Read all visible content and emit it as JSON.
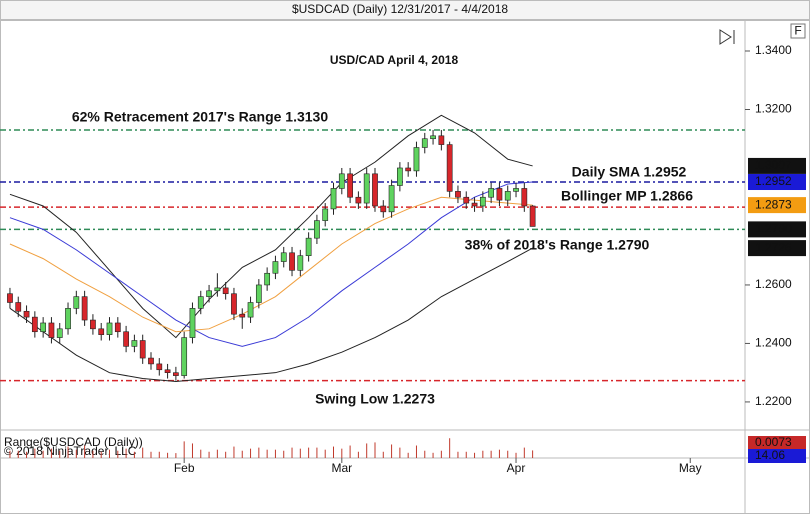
{
  "chart_data": {
    "type": "candlestick",
    "header": "$USDCAD (Daily)  12/31/2017 - 4/4/2018",
    "title": "USD/CAD April 4, 2018",
    "button": "F",
    "copyright": "© 2018 NinjaTrader, LLC",
    "up_color": "#5fd35f",
    "down_color": "#d7262b",
    "x": [
      0,
      1,
      2,
      3,
      4,
      5,
      6,
      7,
      8,
      9,
      10,
      11,
      12,
      13,
      14,
      15,
      16,
      17,
      18,
      19,
      20,
      21,
      22,
      23,
      24,
      25,
      26,
      27,
      28,
      29,
      30,
      31,
      32,
      33,
      34,
      35,
      36,
      37,
      38,
      39,
      40,
      41,
      42,
      43,
      44,
      45,
      46,
      47,
      48,
      49,
      50,
      51,
      52,
      53,
      54,
      55,
      56,
      57,
      58,
      59,
      60,
      61,
      62,
      63
    ],
    "open": [
      1.257,
      1.254,
      1.251,
      1.249,
      1.244,
      1.247,
      1.242,
      1.245,
      1.252,
      1.256,
      1.248,
      1.245,
      1.243,
      1.247,
      1.244,
      1.239,
      1.241,
      1.235,
      1.233,
      1.231,
      1.23,
      1.229,
      1.242,
      1.252,
      1.256,
      1.258,
      1.259,
      1.257,
      1.25,
      1.249,
      1.254,
      1.26,
      1.264,
      1.268,
      1.271,
      1.265,
      1.27,
      1.276,
      1.282,
      1.286,
      1.293,
      1.298,
      1.29,
      1.288,
      1.298,
      1.287,
      1.285,
      1.294,
      1.3,
      1.299,
      1.307,
      1.31,
      1.311,
      1.308,
      1.292,
      1.29,
      1.288,
      1.287,
      1.29,
      1.293,
      1.289,
      1.292,
      1.293,
      1.287
    ],
    "high": [
      1.259,
      1.256,
      1.253,
      1.251,
      1.249,
      1.249,
      1.247,
      1.254,
      1.258,
      1.258,
      1.25,
      1.247,
      1.249,
      1.249,
      1.246,
      1.243,
      1.243,
      1.237,
      1.235,
      1.233,
      1.232,
      1.244,
      1.254,
      1.258,
      1.26,
      1.264,
      1.261,
      1.259,
      1.252,
      1.256,
      1.262,
      1.266,
      1.27,
      1.273,
      1.273,
      1.272,
      1.278,
      1.284,
      1.288,
      1.295,
      1.3,
      1.3,
      1.292,
      1.3,
      1.3,
      1.289,
      1.296,
      1.302,
      1.302,
      1.309,
      1.312,
      1.313,
      1.313,
      1.309,
      1.294,
      1.292,
      1.29,
      1.292,
      1.295,
      1.295,
      1.294,
      1.295,
      1.295,
      1.2873
    ],
    "low": [
      1.252,
      1.249,
      1.247,
      1.242,
      1.242,
      1.24,
      1.24,
      1.243,
      1.25,
      1.246,
      1.243,
      1.241,
      1.241,
      1.242,
      1.237,
      1.237,
      1.233,
      1.231,
      1.229,
      1.228,
      1.2273,
      1.228,
      1.24,
      1.25,
      1.254,
      1.256,
      1.255,
      1.248,
      1.245,
      1.247,
      1.252,
      1.258,
      1.262,
      1.266,
      1.263,
      1.263,
      1.268,
      1.274,
      1.28,
      1.284,
      1.291,
      1.288,
      1.286,
      1.286,
      1.285,
      1.283,
      1.283,
      1.292,
      1.297,
      1.297,
      1.305,
      1.308,
      1.306,
      1.29,
      1.288,
      1.286,
      1.285,
      1.285,
      1.288,
      1.287,
      1.287,
      1.29,
      1.285,
      1.28
    ],
    "close": [
      1.254,
      1.251,
      1.249,
      1.244,
      1.247,
      1.242,
      1.245,
      1.252,
      1.256,
      1.248,
      1.245,
      1.243,
      1.247,
      1.244,
      1.239,
      1.241,
      1.235,
      1.233,
      1.231,
      1.23,
      1.229,
      1.242,
      1.252,
      1.256,
      1.258,
      1.259,
      1.257,
      1.25,
      1.249,
      1.254,
      1.26,
      1.264,
      1.268,
      1.271,
      1.265,
      1.27,
      1.276,
      1.282,
      1.286,
      1.293,
      1.298,
      1.29,
      1.288,
      1.298,
      1.287,
      1.285,
      1.294,
      1.3,
      1.299,
      1.307,
      1.31,
      1.311,
      1.308,
      1.292,
      1.29,
      1.288,
      1.287,
      1.29,
      1.293,
      1.289,
      1.292,
      1.293,
      1.287,
      1.28
    ],
    "xlim": [
      -1.2,
      88.6
    ],
    "xticks": [
      {
        "value": 21,
        "label": "Feb"
      },
      {
        "value": 40,
        "label": "Mar"
      },
      {
        "value": 61,
        "label": "Apr"
      },
      {
        "value": 82,
        "label": "May"
      }
    ],
    "ylim": [
      1.2104,
      1.3506
    ],
    "yticks": [
      {
        "value": 1.34,
        "label": "1.3400"
      },
      {
        "value": 1.32,
        "label": "1.3200"
      },
      {
        "value": 1.26,
        "label": "1.2600"
      },
      {
        "value": 1.24,
        "label": "1.2400"
      },
      {
        "value": 1.22,
        "label": "1.2200"
      }
    ],
    "overlays": [
      {
        "color": "#222222",
        "x": [
          0,
          4,
          8,
          12,
          16,
          20,
          24,
          28,
          32,
          36,
          40,
          44,
          48,
          52,
          56,
          60,
          63
        ],
        "values": [
          1.291,
          1.287,
          1.278,
          1.265,
          1.252,
          1.242,
          1.255,
          1.266,
          1.272,
          1.283,
          1.295,
          1.302,
          1.311,
          1.318,
          1.312,
          1.303,
          1.3007
        ]
      },
      {
        "color": "#222222",
        "x": [
          0,
          4,
          8,
          12,
          16,
          20,
          24,
          28,
          32,
          36,
          40,
          44,
          48,
          52,
          56,
          60,
          63
        ],
        "values": [
          1.252,
          1.244,
          1.236,
          1.23,
          1.228,
          1.227,
          1.228,
          1.229,
          1.23,
          1.233,
          1.237,
          1.242,
          1.248,
          1.256,
          1.262,
          1.268,
          1.2726
        ]
      },
      {
        "color": "#3a3ad6",
        "x": [
          0,
          4,
          8,
          12,
          16,
          20,
          24,
          28,
          32,
          36,
          40,
          44,
          48,
          52,
          56,
          60,
          63
        ],
        "values": [
          1.283,
          1.279,
          1.272,
          1.264,
          1.256,
          1.248,
          1.242,
          1.239,
          1.242,
          1.249,
          1.258,
          1.266,
          1.274,
          1.283,
          1.29,
          1.2945,
          1.2952
        ]
      },
      {
        "color": "#f0a040",
        "x": [
          0,
          4,
          8,
          12,
          16,
          20,
          24,
          28,
          32,
          36,
          40,
          44,
          48,
          52,
          56,
          60,
          63
        ],
        "values": [
          1.274,
          1.269,
          1.262,
          1.256,
          1.249,
          1.244,
          1.245,
          1.25,
          1.256,
          1.265,
          1.274,
          1.281,
          1.286,
          1.29,
          1.289,
          1.288,
          1.2873
        ]
      }
    ],
    "levels": [
      {
        "value": 1.313,
        "color": "#2e8b57",
        "label": "62% Retracement 2017's Range 1.3130"
      },
      {
        "value": 1.2952,
        "color": "#1a1aa0",
        "label": "Daily SMA 1.2952"
      },
      {
        "value": 1.2866,
        "color": "#d7262b",
        "label": "Bollinger MP 1.2866"
      },
      {
        "value": 1.279,
        "color": "#2e8b57",
        "label": "38% of 2018's Range 1.2790"
      },
      {
        "value": 1.2273,
        "color": "#d7262b",
        "label": "Swing Low 1.2273"
      }
    ],
    "price_labels": [
      {
        "value": 1.3007,
        "label": "1.3007",
        "color": "#111111"
      },
      {
        "value": 1.2952,
        "label": "1.2952",
        "color": "#1a1ad6"
      },
      {
        "value": 1.2873,
        "label": "1.2873",
        "color": "#f39c12"
      },
      {
        "value": 1.279,
        "label": "1.2790",
        "color": "#111111"
      },
      {
        "value": 1.2726,
        "label": "1.2726",
        "color": "#111111"
      }
    ],
    "range": {
      "title": "Range($USDCAD (Daily))",
      "color": "#c0392b",
      "ylim": [
        0,
        0.025
      ],
      "values": [
        0.007,
        0.007,
        0.006,
        0.009,
        0.007,
        0.009,
        0.007,
        0.011,
        0.008,
        0.012,
        0.007,
        0.006,
        0.008,
        0.007,
        0.009,
        0.006,
        0.01,
        0.006,
        0.006,
        0.005,
        0.0047,
        0.016,
        0.014,
        0.008,
        0.006,
        0.008,
        0.006,
        0.011,
        0.007,
        0.009,
        0.01,
        0.008,
        0.008,
        0.007,
        0.01,
        0.009,
        0.01,
        0.01,
        0.008,
        0.011,
        0.009,
        0.012,
        0.006,
        0.014,
        0.015,
        0.006,
        0.013,
        0.01,
        0.005,
        0.012,
        0.007,
        0.005,
        0.007,
        0.019,
        0.006,
        0.006,
        0.005,
        0.007,
        0.007,
        0.008,
        0.007,
        0.005,
        0.01,
        0.0073
      ],
      "readouts": [
        {
          "label": "0.0073",
          "color": "#c62828"
        },
        {
          "label": "14.06",
          "color": "#1a1ad6"
        }
      ]
    }
  }
}
